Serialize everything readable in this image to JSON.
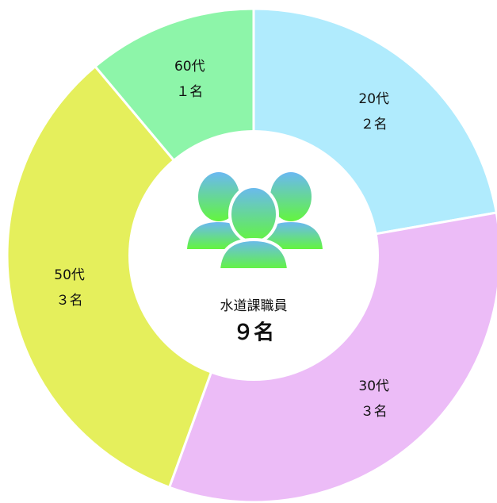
{
  "chart_data": {
    "type": "donut",
    "categories": [
      "20代",
      "30代",
      "50代",
      "60代"
    ],
    "values": [
      2,
      3,
      3,
      1
    ],
    "value_labels": [
      "２名",
      "３名",
      "３名",
      "１名"
    ],
    "colors": [
      "#b0ebfd",
      "#ecbcf7",
      "#e5ef5c",
      "#8df5a9"
    ],
    "center_title": "水道課職員",
    "center_text": "９名"
  }
}
